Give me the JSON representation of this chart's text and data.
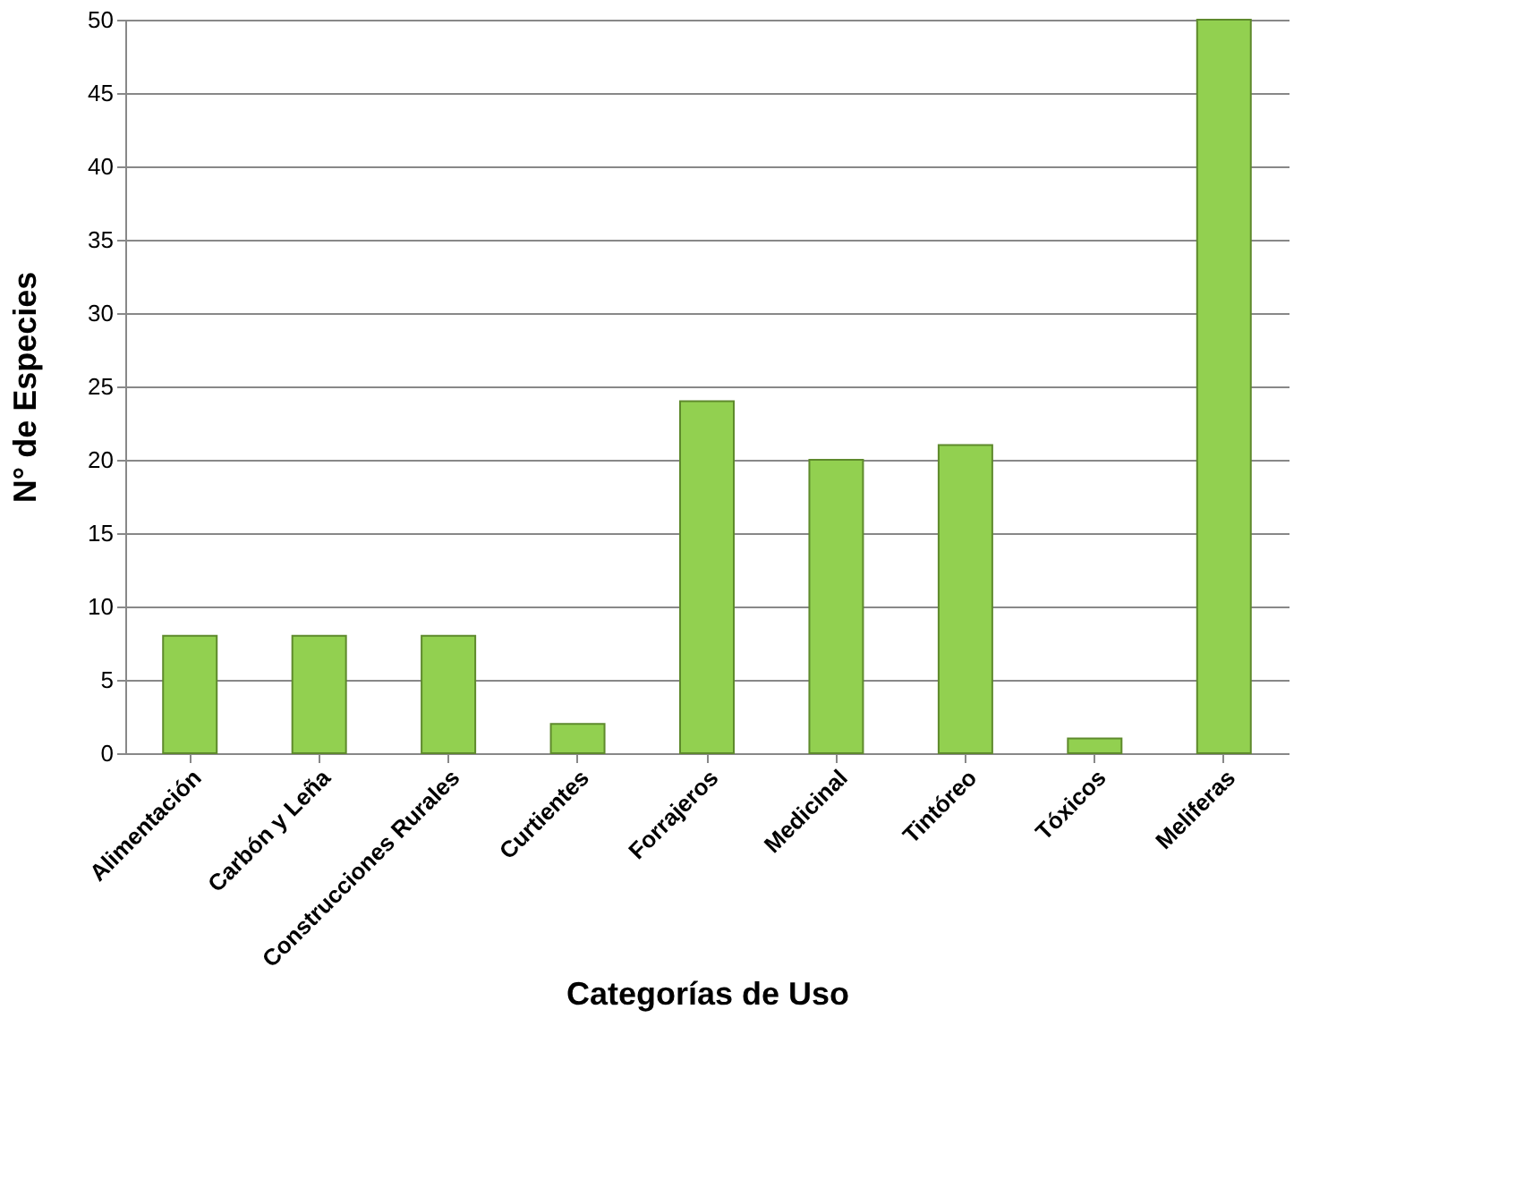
{
  "chart_data": {
    "type": "bar",
    "xlabel": "Categorías de Uso",
    "ylabel": "N° de Especies",
    "categories": [
      "Alimentación",
      "Carbón y Leña",
      "Construcciones Rurales",
      "Curtientes",
      "Forrajeros",
      "Medicinal",
      "Tintóreo",
      "Tóxicos",
      "Meliferas"
    ],
    "values": [
      8,
      8,
      8,
      2,
      24,
      20,
      21,
      1,
      50
    ],
    "color": "#92d050",
    "ylim": [
      0,
      50
    ],
    "yticks": [
      0,
      5,
      10,
      15,
      20,
      25,
      30,
      35,
      40,
      45,
      50
    ],
    "grid": "y"
  }
}
